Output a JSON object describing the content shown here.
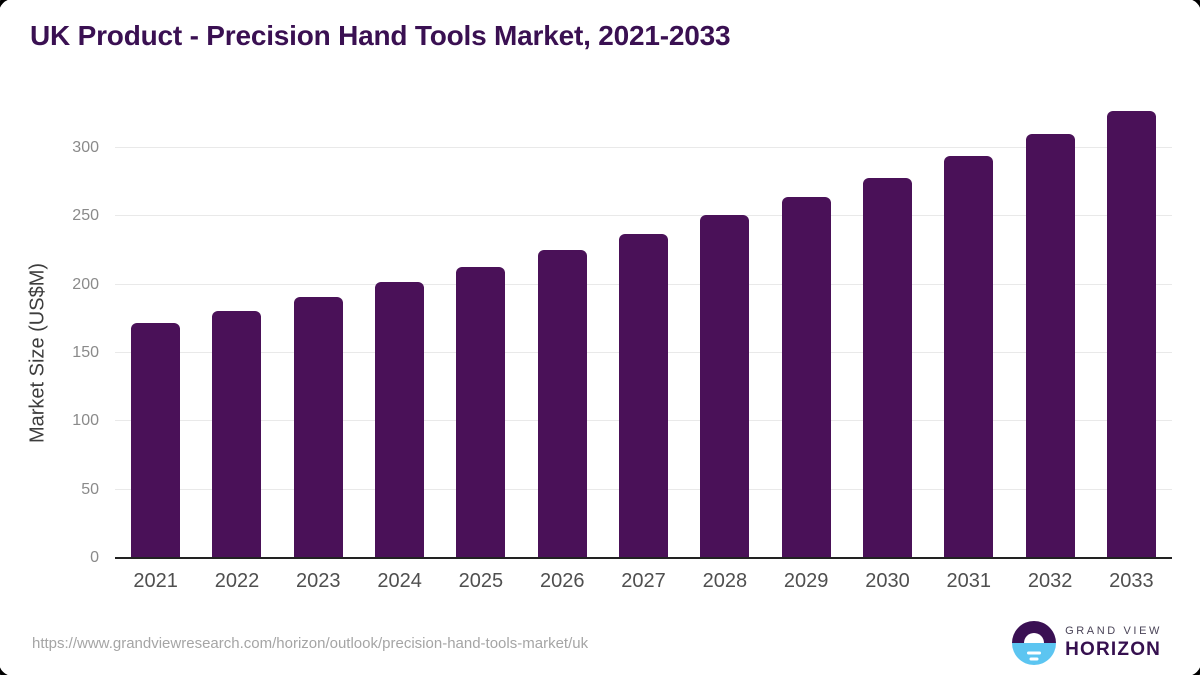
{
  "title": "UK Product - Precision Hand Tools Market, 2021-2033",
  "chart_data": {
    "type": "bar",
    "title": "UK Product - Precision Hand Tools Market, 2021-2033",
    "categories": [
      "2021",
      "2022",
      "2023",
      "2024",
      "2025",
      "2026",
      "2027",
      "2028",
      "2029",
      "2030",
      "2031",
      "2032",
      "2033"
    ],
    "values": [
      172,
      181,
      191,
      202,
      213,
      225,
      237,
      251,
      264,
      278,
      294,
      310,
      327
    ],
    "xlabel": "",
    "ylabel": "Market Size (US$M)",
    "ylim": [
      0,
      335
    ],
    "yticks": [
      0,
      50,
      100,
      150,
      200,
      250,
      300
    ],
    "grid": "horizontal",
    "legend": "none",
    "bar_color": "#4A1158"
  },
  "colors": {
    "title": "#3A1052",
    "bar": "#4A1158",
    "gridline": "#E9E9E9",
    "axis_line": "#222222",
    "logo_circle_top": "#3A1053",
    "logo_circle_bottom": "#5CC5F1"
  },
  "footer": {
    "source_url": "https://www.grandviewresearch.com/horizon/outlook/precision-hand-tools-market/uk",
    "logo": {
      "line1": "GRAND VIEW",
      "line2": "HORIZON"
    }
  }
}
